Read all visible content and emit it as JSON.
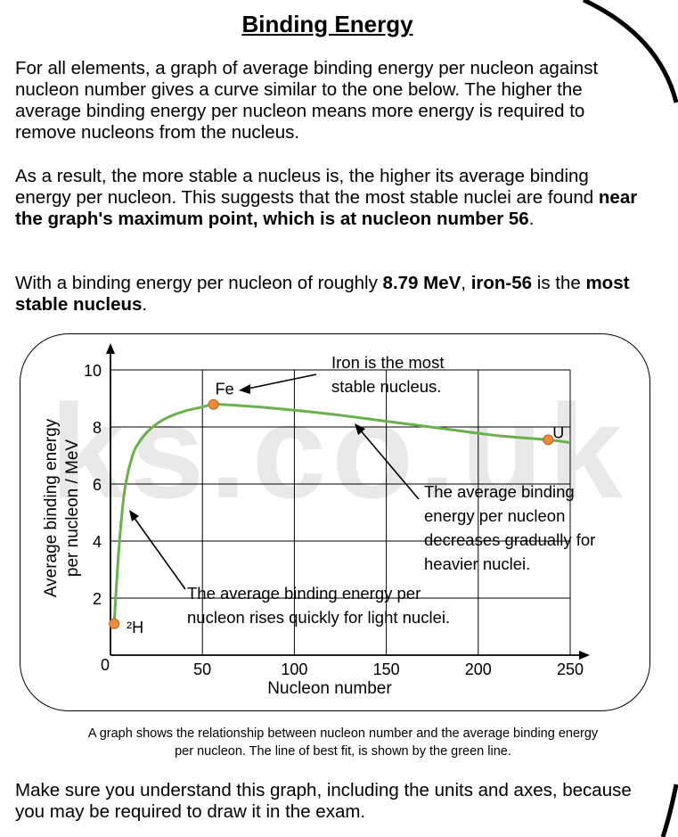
{
  "title": "Binding Energy",
  "para1": "For all elements, a graph of average binding energy per nucleon against nucleon number gives a curve similar to the one below. The higher the average binding energy per nucleon means more energy is required to remove nucleons from the nucleus.",
  "para2": {
    "text": "As a result, the more stable a nucleus is, the higher its average binding energy per nucleon. This suggests that the most stable nuclei are found ",
    "bold": "near the graph's maximum point, which is at nucleon number 56",
    "end": "."
  },
  "para3": {
    "t1": "With a binding energy per nucleon of roughly ",
    "b1": "8.79 MeV",
    "t2": ", ",
    "b2": "iron-56",
    "t3": " is the ",
    "b3": "most stable nucleus",
    "t4": "."
  },
  "watermark": "ks.co.uk",
  "chart_data": {
    "type": "line",
    "xlabel": "Nucleon number",
    "ylabel_lines": [
      "Average binding energy",
      "per nucleon / MeV"
    ],
    "xlim": [
      0,
      250
    ],
    "ylim": [
      0,
      10
    ],
    "x_ticks": [
      50,
      100,
      150,
      200,
      250
    ],
    "y_ticks": [
      2,
      4,
      6,
      8,
      10
    ],
    "origin_label": "0",
    "grid": true,
    "line_color": "#6ab04c",
    "point_color": "#f08a3a",
    "series": [
      {
        "name": "Average binding energy per nucleon",
        "x": [
          2,
          4,
          6,
          8,
          12,
          16,
          22,
          30,
          40,
          50,
          56,
          70,
          90,
          120,
          150,
          180,
          210,
          238,
          250
        ],
        "y": [
          1.1,
          3.2,
          4.8,
          5.9,
          7.0,
          7.5,
          7.95,
          8.3,
          8.55,
          8.7,
          8.79,
          8.75,
          8.65,
          8.45,
          8.2,
          7.95,
          7.7,
          7.55,
          7.45
        ]
      }
    ],
    "points": [
      {
        "label": "²H",
        "x": 2,
        "y": 1.1
      },
      {
        "label": "Fe",
        "x": 56,
        "y": 8.79
      },
      {
        "label": "U",
        "x": 238,
        "y": 7.55
      }
    ],
    "annotations": {
      "iron": [
        "Iron is the most",
        "stable nucleus."
      ],
      "heavy": [
        "The average binding",
        "energy per nucleon",
        "decreases gradually for",
        "heavier nuclei."
      ],
      "light": [
        "The average binding energy per",
        "nucleon rises quickly for light nuclei."
      ]
    }
  },
  "caption_line1": "A graph shows the relationship between nucleon number and the average binding energy",
  "caption_line2": "per nucleon. The line of best fit, is shown by the green line.",
  "footer": "Make sure you understand this graph, including the units and axes, because you may be required to draw it in the exam."
}
